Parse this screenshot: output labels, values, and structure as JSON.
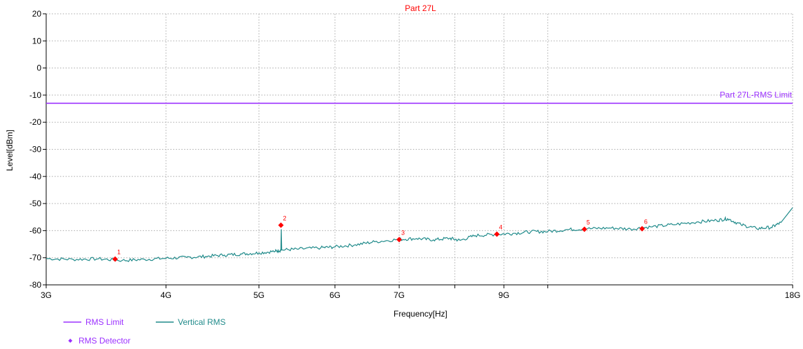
{
  "chart_data": {
    "type": "line",
    "title": "Part 27L",
    "xlabel": "Frequency[Hz]",
    "ylabel": "Level[dBm]",
    "x_scale": "log",
    "xlim": [
      3000000000,
      18000000000
    ],
    "ylim": [
      -80,
      20
    ],
    "y_ticks": [
      20,
      10,
      0,
      -10,
      -20,
      -30,
      -40,
      -50,
      -60,
      -70,
      -80
    ],
    "x_ticks": [
      {
        "value": 3000000000,
        "label": "3G"
      },
      {
        "value": 4000000000,
        "label": "4G"
      },
      {
        "value": 5000000000,
        "label": "5G"
      },
      {
        "value": 6000000000,
        "label": "6G"
      },
      {
        "value": 7000000000,
        "label": "7G"
      },
      {
        "value": 8000000000,
        "label": ""
      },
      {
        "value": 9000000000,
        "label": "9G"
      },
      {
        "value": 10000000000,
        "label": ""
      },
      {
        "value": 18000000000,
        "label": "18G"
      }
    ],
    "grid": true,
    "limit_line": {
      "label": "Part 27L-RMS Limit",
      "value": -13,
      "color": "#9b30ff"
    },
    "series": [
      {
        "name": "Vertical RMS",
        "color": "#1f8a8a",
        "points": [
          [
            3000000000,
            -70.3
          ],
          [
            3200000000,
            -70.6
          ],
          [
            3400000000,
            -70.4
          ],
          [
            3600000000,
            -71.0
          ],
          [
            3800000000,
            -70.6
          ],
          [
            4000000000,
            -70.2
          ],
          [
            4200000000,
            -69.9
          ],
          [
            4400000000,
            -69.5
          ],
          [
            4600000000,
            -69.0
          ],
          [
            4800000000,
            -68.6
          ],
          [
            5000000000,
            -68.2
          ],
          [
            5200000000,
            -67.6
          ],
          [
            5270000000,
            -67.2
          ],
          [
            5275000000,
            -59.5
          ],
          [
            5280000000,
            -67.1
          ],
          [
            5500000000,
            -66.8
          ],
          [
            5800000000,
            -66.3
          ],
          [
            6000000000,
            -66.0
          ],
          [
            6300000000,
            -65.2
          ],
          [
            6600000000,
            -64.1
          ],
          [
            7000000000,
            -63.2
          ],
          [
            7300000000,
            -62.9
          ],
          [
            7600000000,
            -63.4
          ],
          [
            7900000000,
            -62.8
          ],
          [
            8100000000,
            -63.6
          ],
          [
            8400000000,
            -61.8
          ],
          [
            8800000000,
            -61.4
          ],
          [
            9200000000,
            -61.0
          ],
          [
            9600000000,
            -60.4
          ],
          [
            10000000000,
            -60.3
          ],
          [
            10500000000,
            -59.6
          ],
          [
            11000000000,
            -59.3
          ],
          [
            11600000000,
            -59.0
          ],
          [
            12200000000,
            -59.4
          ],
          [
            12800000000,
            -58.6
          ],
          [
            13500000000,
            -57.8
          ],
          [
            14300000000,
            -56.8
          ],
          [
            15000000000,
            -56.2
          ],
          [
            15400000000,
            -55.6
          ],
          [
            15900000000,
            -57.8
          ],
          [
            16500000000,
            -59.2
          ],
          [
            17100000000,
            -58.8
          ],
          [
            17500000000,
            -57.0
          ],
          [
            18000000000,
            -51.5
          ]
        ]
      }
    ],
    "markers": [
      {
        "label": "1",
        "x": 3540000000,
        "y": -70.5
      },
      {
        "label": "2",
        "x": 5270000000,
        "y": -58.0
      },
      {
        "label": "3",
        "x": 7000000000,
        "y": -63.3
      },
      {
        "label": "4",
        "x": 8850000000,
        "y": -61.3
      },
      {
        "label": "5",
        "x": 10920000000,
        "y": -59.5
      },
      {
        "label": "6",
        "x": 12540000000,
        "y": -59.3
      }
    ],
    "marker_color": "#ff0000",
    "legend": {
      "items": [
        {
          "label": "RMS Limit",
          "color": "#9b30ff",
          "kind": "line"
        },
        {
          "label": "Vertical RMS",
          "color": "#1f8a8a",
          "kind": "line"
        },
        {
          "label": "RMS Detector",
          "color": "#9b30ff",
          "kind": "diamond"
        }
      ],
      "placement": "bottom-left"
    }
  }
}
